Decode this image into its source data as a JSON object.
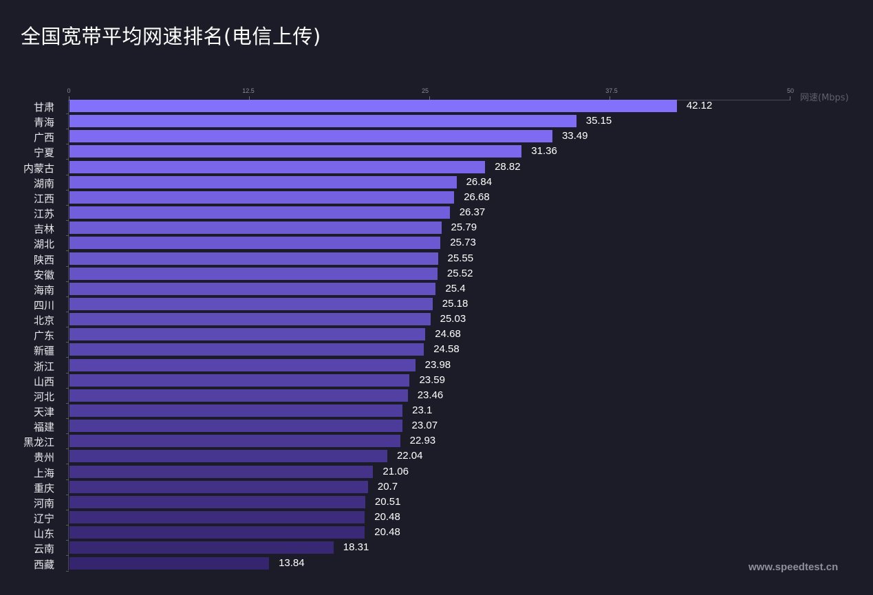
{
  "title": "全国宽带平均网速排名(电信上传)",
  "watermark": "www.speedtest.cn",
  "axis": {
    "unit_label": "网速(Mbps)",
    "ticks": [
      "0",
      "12.5",
      "25",
      "37.5",
      "50"
    ]
  },
  "colors": {
    "bar_top": "#8370fb",
    "bar_bottom": "#35246e",
    "background": "#1b1c27"
  },
  "chart_data": {
    "type": "bar",
    "orientation": "horizontal",
    "title": "全国宽带平均网速排名(电信上传)",
    "xlabel": "网速(Mbps)",
    "ylabel": "",
    "xlim": [
      0,
      50
    ],
    "x_ticks": [
      0,
      12.5,
      25,
      37.5,
      50
    ],
    "grid": false,
    "legend": null,
    "categories": [
      "甘肃",
      "青海",
      "广西",
      "宁夏",
      "内蒙古",
      "湖南",
      "江西",
      "江苏",
      "吉林",
      "湖北",
      "陕西",
      "安徽",
      "海南",
      "四川",
      "北京",
      "广东",
      "新疆",
      "浙江",
      "山西",
      "河北",
      "天津",
      "福建",
      "黑龙江",
      "贵州",
      "上海",
      "重庆",
      "河南",
      "辽宁",
      "山东",
      "云南",
      "西藏"
    ],
    "values": [
      42.12,
      35.15,
      33.49,
      31.36,
      28.82,
      26.84,
      26.68,
      26.37,
      25.79,
      25.73,
      25.55,
      25.52,
      25.4,
      25.18,
      25.03,
      24.68,
      24.58,
      23.98,
      23.59,
      23.46,
      23.1,
      23.07,
      22.93,
      22.04,
      21.06,
      20.7,
      20.51,
      20.48,
      20.48,
      18.31,
      13.84
    ],
    "value_labels": [
      "42.12",
      "35.15",
      "33.49",
      "31.36",
      "28.82",
      "26.84",
      "26.68",
      "26.37",
      "25.79",
      "25.73",
      "25.55",
      "25.52",
      "25.4",
      "25.18",
      "25.03",
      "24.68",
      "24.58",
      "23.98",
      "23.59",
      "23.46",
      "23.1",
      "23.07",
      "22.93",
      "22.04",
      "21.06",
      "20.7",
      "20.51",
      "20.48",
      "20.48",
      "18.31",
      "13.84"
    ]
  }
}
